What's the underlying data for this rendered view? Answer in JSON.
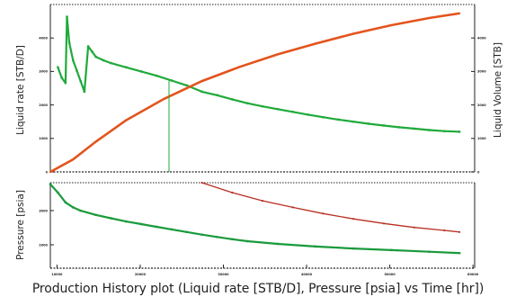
{
  "caption": "Production History plot (Liquid rate [STB/D], Pressure [psia] vs Time [hr])",
  "colors": {
    "rate": "#1faa3a",
    "cumulative": "#e3541d",
    "pressure_points": "#1a9a3c",
    "pressure_model": "#b82f22"
  },
  "chart_data": [
    {
      "type": "scatter",
      "title": "",
      "ylabel": "Liquid rate [STB/D]",
      "y2label": "Liquid Volume [STB]",
      "xlim": [
        0,
        5.6
      ],
      "ylim": [
        0,
        4.8
      ],
      "y2lim": [
        0,
        4.7
      ],
      "yticks": [
        "0",
        "1000",
        "2000",
        "3000",
        "4000"
      ],
      "y2ticks": [
        "0",
        "1000",
        "2000",
        "3000",
        "4000"
      ],
      "grid": false,
      "series": [
        {
          "kind": "rate",
          "points": [
            [
              0.1,
              3.0
            ],
            [
              0.15,
              2.7
            ],
            [
              0.2,
              2.55
            ],
            [
              0.22,
              4.45
            ],
            [
              0.25,
              3.7
            ],
            [
              0.3,
              3.2
            ],
            [
              0.35,
              2.9
            ],
            [
              0.4,
              2.6
            ],
            [
              0.45,
              2.3
            ],
            [
              0.5,
              3.6
            ],
            [
              0.55,
              3.45
            ],
            [
              0.6,
              3.3
            ],
            [
              0.7,
              3.2
            ],
            [
              0.8,
              3.12
            ],
            [
              1.0,
              3.0
            ],
            [
              1.2,
              2.88
            ],
            [
              1.4,
              2.76
            ],
            [
              1.6,
              2.62
            ],
            [
              1.8,
              2.48
            ],
            [
              2.0,
              2.3
            ],
            [
              2.2,
              2.2
            ],
            [
              2.4,
              2.08
            ],
            [
              2.6,
              1.97
            ],
            [
              2.8,
              1.88
            ],
            [
              3.0,
              1.8
            ],
            [
              3.2,
              1.72
            ],
            [
              3.4,
              1.64
            ],
            [
              3.6,
              1.57
            ],
            [
              3.8,
              1.5
            ],
            [
              4.0,
              1.44
            ],
            [
              4.2,
              1.38
            ],
            [
              4.4,
              1.33
            ],
            [
              4.6,
              1.28
            ],
            [
              4.8,
              1.24
            ],
            [
              5.0,
              1.2
            ],
            [
              5.2,
              1.17
            ],
            [
              5.4,
              1.15
            ]
          ]
        },
        {
          "kind": "cumulative",
          "points": [
            [
              0.0,
              0.0
            ],
            [
              0.3,
              0.35
            ],
            [
              0.6,
              0.85
            ],
            [
              1.0,
              1.45
            ],
            [
              1.5,
              2.05
            ],
            [
              2.0,
              2.55
            ],
            [
              2.5,
              2.95
            ],
            [
              3.0,
              3.3
            ],
            [
              3.5,
              3.6
            ],
            [
              4.0,
              3.88
            ],
            [
              4.5,
              4.12
            ],
            [
              5.0,
              4.32
            ],
            [
              5.4,
              4.45
            ]
          ]
        }
      ]
    },
    {
      "type": "scatter",
      "title": "",
      "ylabel": "Pressure [psia]",
      "xlabel": "",
      "xlim": [
        0,
        5.6
      ],
      "ylim": [
        0,
        2.6
      ],
      "yticks": [
        "2000",
        "3000"
      ],
      "xticks": [
        "10000",
        "20000",
        "30000",
        "40000",
        "50000",
        "60000"
      ],
      "grid": false,
      "series": [
        {
          "kind": "pressure_points",
          "points": [
            [
              0.0,
              2.55
            ],
            [
              0.1,
              2.3
            ],
            [
              0.2,
              2.0
            ],
            [
              0.3,
              1.85
            ],
            [
              0.4,
              1.75
            ],
            [
              0.6,
              1.62
            ],
            [
              0.8,
              1.52
            ],
            [
              1.0,
              1.42
            ],
            [
              1.2,
              1.34
            ],
            [
              1.4,
              1.26
            ],
            [
              1.6,
              1.18
            ],
            [
              1.8,
              1.1
            ],
            [
              2.0,
              1.02
            ],
            [
              2.2,
              0.95
            ],
            [
              2.4,
              0.88
            ],
            [
              2.6,
              0.82
            ],
            [
              3.0,
              0.74
            ],
            [
              3.5,
              0.66
            ],
            [
              4.0,
              0.6
            ],
            [
              4.5,
              0.55
            ],
            [
              5.0,
              0.5
            ],
            [
              5.4,
              0.46
            ]
          ]
        },
        {
          "kind": "pressure_model",
          "points": [
            [
              2.0,
              2.6
            ],
            [
              2.4,
              2.3
            ],
            [
              2.8,
              2.05
            ],
            [
              3.2,
              1.85
            ],
            [
              3.6,
              1.66
            ],
            [
              4.0,
              1.5
            ],
            [
              4.4,
              1.36
            ],
            [
              4.8,
              1.24
            ],
            [
              5.2,
              1.15
            ],
            [
              5.4,
              1.1
            ]
          ]
        }
      ]
    }
  ]
}
